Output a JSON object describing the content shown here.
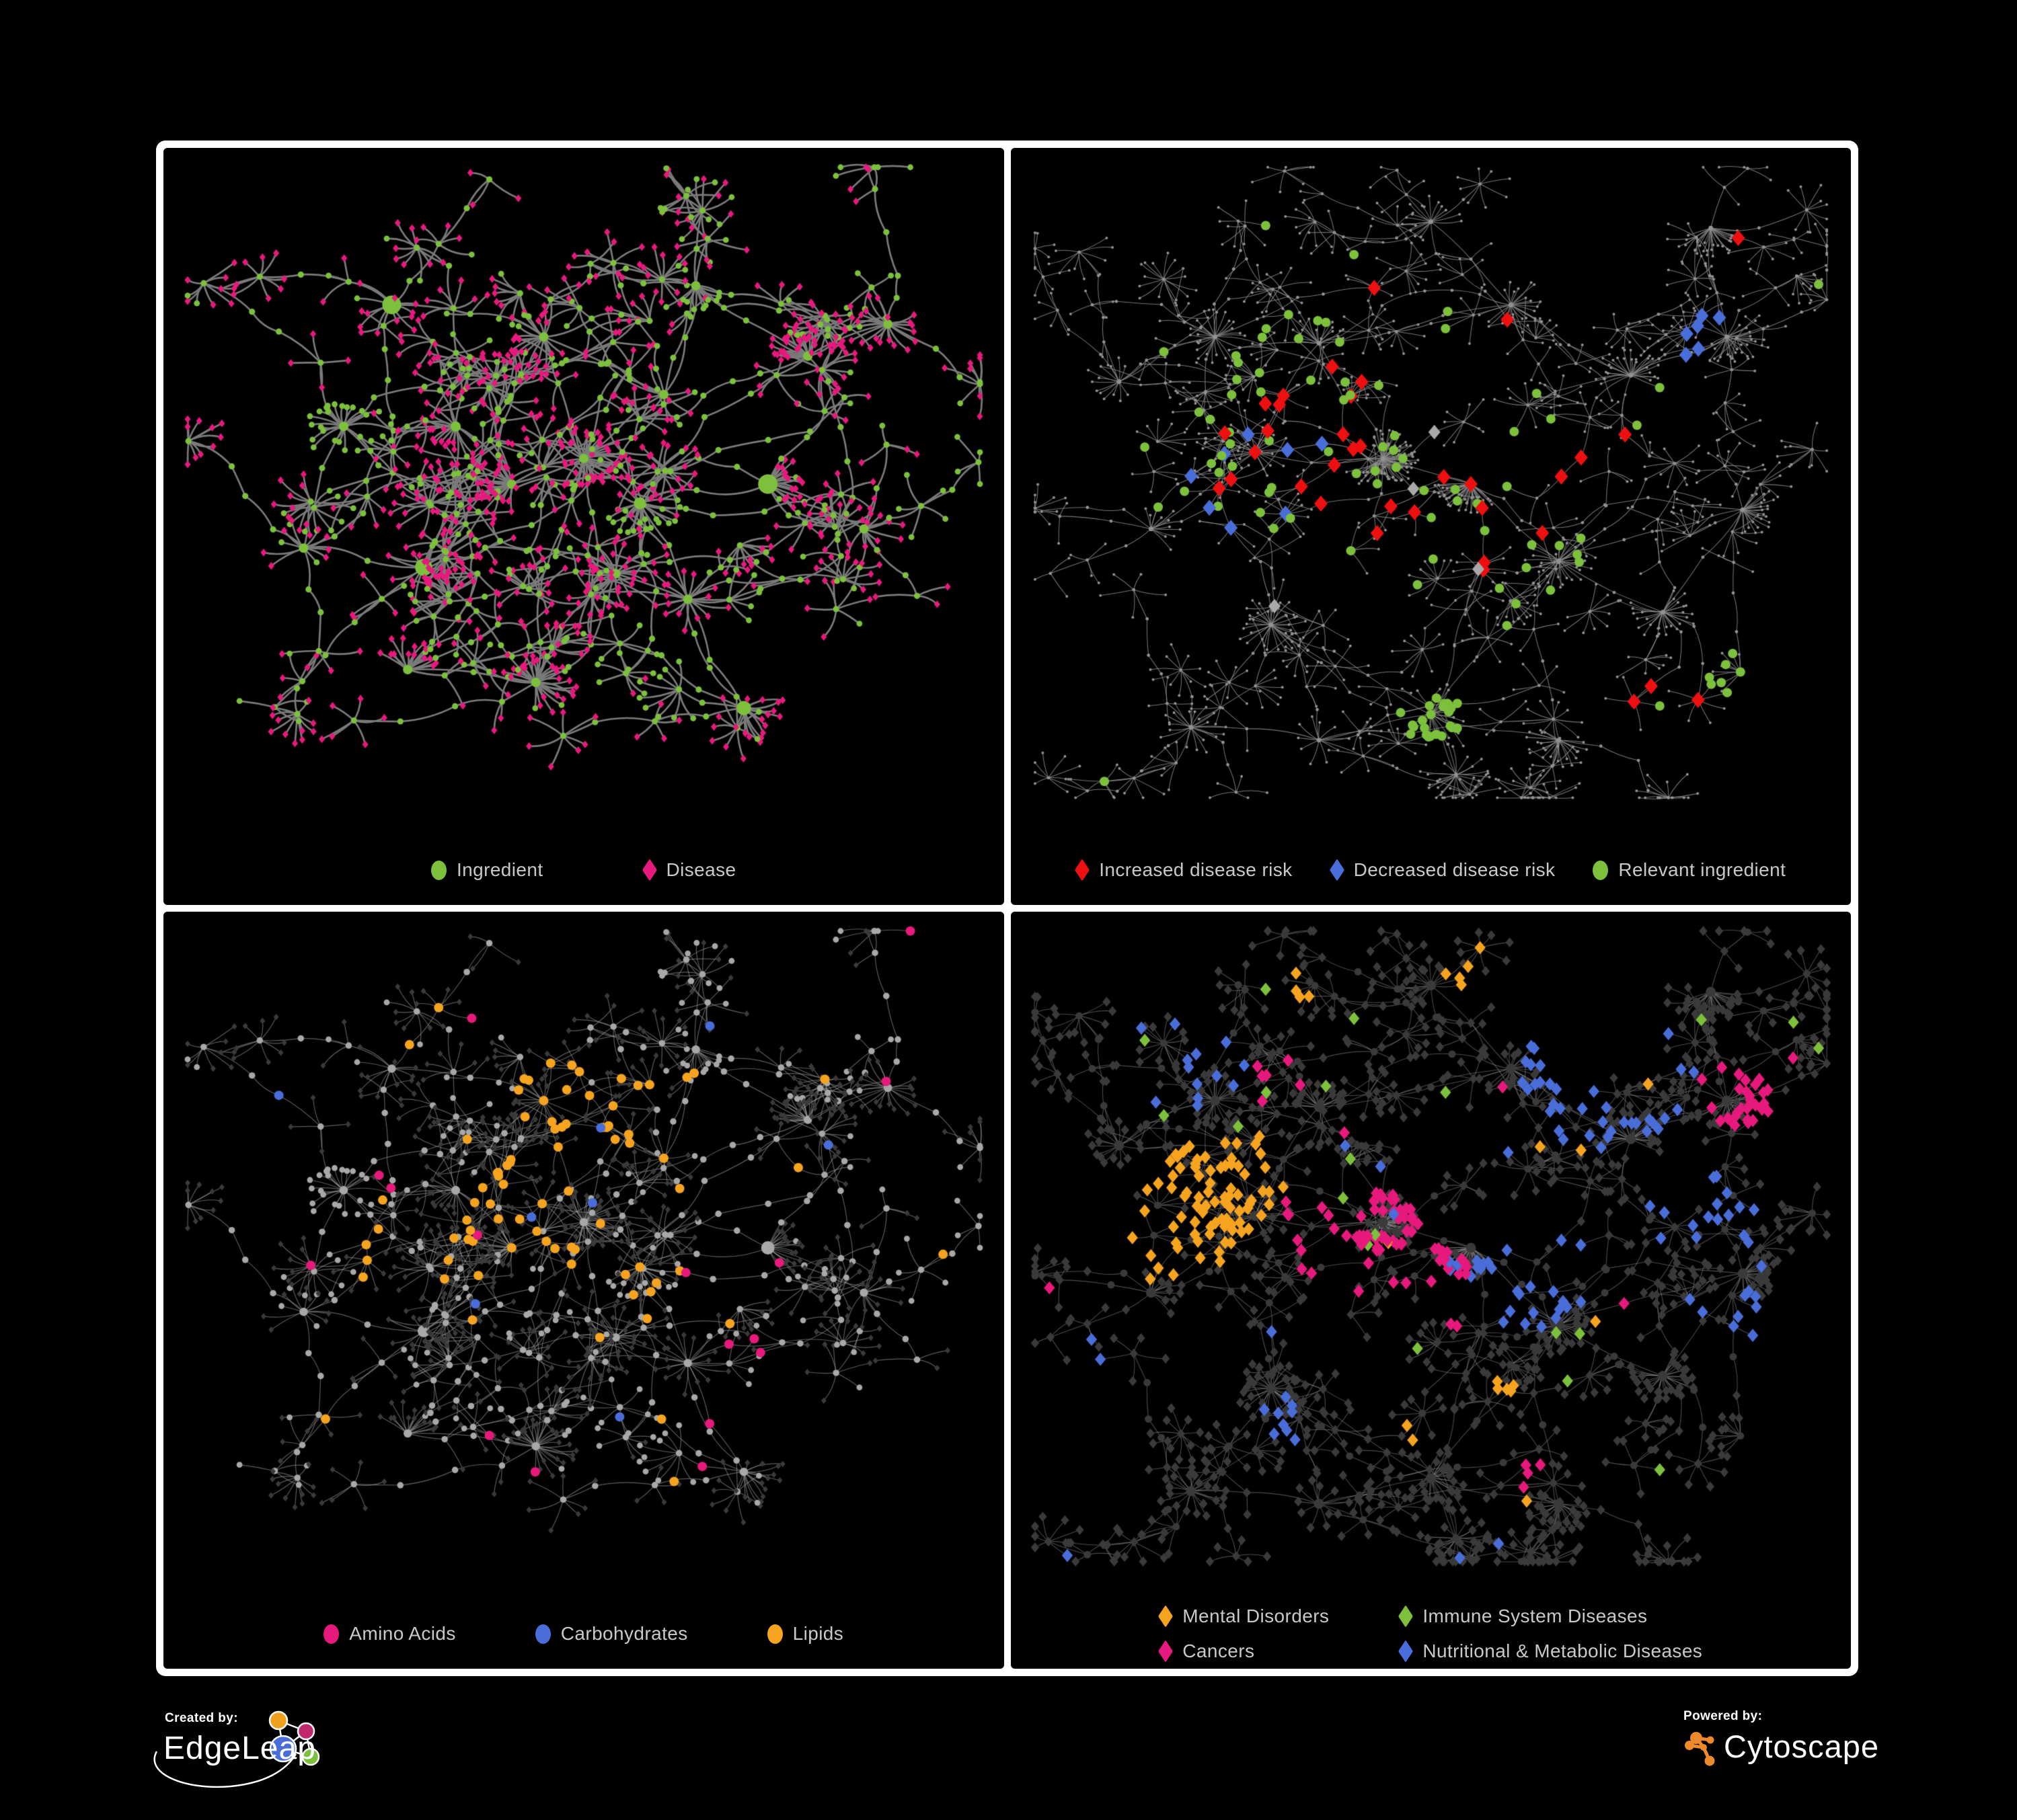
{
  "panels": [
    {
      "name": "ingredient-disease-network",
      "layout": "A",
      "legend": [
        {
          "shape": "circle",
          "color": "#7cc03c",
          "label": "Ingredient"
        },
        {
          "shape": "diamond",
          "color": "#e7197c",
          "label": "Disease"
        }
      ],
      "style": {
        "mode": "A",
        "seed": 11,
        "edge_color": "rgba(123,123,123,1)",
        "edge_width": 2.7,
        "curve": 0.2,
        "base": {
          "circle": "#7cc03c",
          "diamond": "#e7197c"
        },
        "sizes": {
          "hub": 7,
          "hub_big_p": 0.3,
          "hub_big_add": 8,
          "mid": 4.6,
          "leaf_c": 4.4,
          "leaf_dw": 4.6,
          "leaf_dh": 5.8
        },
        "highlights": []
      }
    },
    {
      "name": "disease-risk-network",
      "layout": "B",
      "legend": [
        {
          "shape": "diamond",
          "color": "#ee1010",
          "label": "Increased disease risk"
        },
        {
          "shape": "diamond",
          "color": "#4a6ed9",
          "label": "Decreased disease risk"
        },
        {
          "shape": "circle",
          "color": "#7cc03c",
          "label": "Relevant ingredient"
        }
      ],
      "style": {
        "mode": "dots",
        "seed": 22,
        "edge_color": "rgba(138,138,138,0.85)",
        "edge_width": 1.05,
        "curve": 0.12,
        "base": {
          "circle": "#929292",
          "diamond": "#929292"
        },
        "sizes": {
          "hub": 3.4,
          "mid": 2.4,
          "leaf": 2.0
        },
        "highlights": [
          {
            "shape": "diamond",
            "color": "#ee1010",
            "size": 10,
            "target": "any",
            "kinds": [
              "hub",
              "mid"
            ],
            "regions": [
              [
                0.46,
                0.44,
                0.17,
                0.42
              ],
              [
                0.28,
                0.44,
                0.13,
                0.28
              ],
              [
                0.63,
                0.58,
                0.1,
                0.35
              ],
              [
                0.55,
                0.3,
                0.08,
                0.2
              ],
              [
                0.93,
                0.42,
                0.04,
                0.8
              ],
              [
                0.79,
                0.82,
                0.06,
                0.5
              ],
              [
                0.7,
                0.4,
                0.06,
                0.3
              ]
            ],
            "global_p": 0.004
          },
          {
            "shape": "diamond",
            "color": "#4a6ed9",
            "size": 10,
            "target": "any",
            "kinds": [
              "hub",
              "mid"
            ],
            "regions": [
              [
                0.25,
                0.49,
                0.09,
                0.3
              ],
              [
                0.84,
                0.27,
                0.04,
                0.85
              ],
              [
                0.33,
                0.42,
                0.05,
                0.25
              ]
            ],
            "global_p": 0.002
          },
          {
            "shape": "diamond",
            "color": "#a9a9a9",
            "size": 9,
            "target": "any",
            "kinds": [
              "hub",
              "mid"
            ],
            "regions": [
              [
                0.38,
                0.52,
                0.22,
                0.07
              ],
              [
                0.6,
                0.47,
                0.15,
                0.06
              ]
            ],
            "global_p": 0.002
          },
          {
            "shape": "circle",
            "color": "#7cc03c",
            "size": 7,
            "target": "any",
            "kinds": [
              "hub",
              "mid",
              "leaf"
            ],
            "regions": [
              [
                0.44,
                0.42,
                0.22,
                0.1
              ],
              [
                0.16,
                0.47,
                0.1,
                0.2
              ],
              [
                0.5,
                0.86,
                0.04,
                0.9
              ],
              [
                0.79,
                0.38,
                0.05,
                0.45
              ],
              [
                0.6,
                0.63,
                0.1,
                0.12
              ],
              [
                0.88,
                0.78,
                0.05,
                0.3
              ]
            ],
            "global_p": 0.003
          }
        ]
      }
    },
    {
      "name": "nutrient-class-network",
      "layout": "A",
      "legend": [
        {
          "shape": "circle",
          "color": "#e7197c",
          "label": "Amino Acids"
        },
        {
          "shape": "circle",
          "color": "#4a6ed9",
          "label": "Carbohydrates"
        },
        {
          "shape": "circle",
          "color": "#f6a41f",
          "label": "Lipids"
        }
      ],
      "style": {
        "mode": "A",
        "seed": 33,
        "edge_color": "rgba(165,165,165,0.55)",
        "edge_width": 1.2,
        "curve": 0.16,
        "base": {
          "circle": "#a8a8a8",
          "diamond": "#3a3a3a"
        },
        "sizes": {
          "hub": 6.2,
          "hub_big_p": 0.25,
          "hub_big_add": 4,
          "mid": 4.8,
          "leaf_c": 4.4,
          "leaf_dw": 4.0,
          "leaf_dh": 4.8
        },
        "highlights": [
          {
            "shape": "circle",
            "color": "#f6a41f",
            "size": 7,
            "target": "circle",
            "regions": [
              [
                0.5,
                0.27,
                0.09,
                0.85
              ],
              [
                0.42,
                0.44,
                0.08,
                0.6
              ],
              [
                0.55,
                0.5,
                0.08,
                0.35
              ],
              [
                0.3,
                0.55,
                0.1,
                0.2
              ],
              [
                0.65,
                0.6,
                0.05,
                0.4
              ]
            ],
            "global_p": 0.025
          },
          {
            "shape": "circle",
            "color": "#e7197c",
            "size": 7,
            "target": "circle",
            "regions": [
              [
                0.7,
                0.72,
                0.08,
                0.3
              ],
              [
                0.15,
                0.5,
                0.06,
                0.3
              ],
              [
                0.45,
                0.85,
                0.05,
                0.3
              ],
              [
                0.85,
                0.35,
                0.05,
                0.3
              ]
            ],
            "global_p": 0.022
          },
          {
            "shape": "circle",
            "color": "#4a6ed9",
            "size": 7,
            "target": "circle",
            "regions": [
              [
                0.46,
                0.4,
                0.06,
                0.5
              ],
              [
                0.12,
                0.28,
                0.04,
                0.6
              ],
              [
                0.52,
                0.33,
                0.05,
                0.3
              ]
            ],
            "global_p": 0.008
          }
        ]
      }
    },
    {
      "name": "disease-category-network",
      "layout": "B",
      "legend": [
        {
          "shape": "diamond",
          "color": "#f6a41f",
          "label": "Mental Disorders"
        },
        {
          "shape": "diamond",
          "color": "#7cc03c",
          "label": "Immune System Diseases"
        },
        {
          "shape": "diamond",
          "color": "#e7197c",
          "label": "Cancers"
        },
        {
          "shape": "diamond",
          "color": "#4a6ed9",
          "label": "Nutritional & Metabolic Diseases"
        }
      ],
      "style": {
        "mode": "B4",
        "seed": 44,
        "edge_color": "rgba(150,150,150,0.5)",
        "edge_width": 1.1,
        "curve": 0.12,
        "base": {
          "circle": "#3a3a3a",
          "diamond": "#3a3a3a"
        },
        "sizes": {
          "hub": 7.5,
          "mid_c": 5.5,
          "dw": 6.2,
          "dh": 7.4
        },
        "highlights": [
          {
            "shape": "diamond",
            "color": "#f6a41f",
            "size": 8.2,
            "target": "diamond",
            "regions": [
              [
                0.19,
                0.44,
                0.1,
                0.9
              ],
              [
                0.13,
                0.5,
                0.07,
                0.7
              ],
              [
                0.27,
                0.38,
                0.06,
                0.35
              ],
              [
                0.55,
                0.06,
                0.04,
                0.6
              ],
              [
                0.33,
                0.09,
                0.04,
                0.45
              ],
              [
                0.47,
                0.78,
                0.03,
                0.5
              ],
              [
                0.6,
                0.72,
                0.03,
                0.4
              ]
            ],
            "global_p": 0.006
          },
          {
            "shape": "diamond",
            "color": "#e7197c",
            "size": 8.2,
            "target": "diamond",
            "regions": [
              [
                0.44,
                0.5,
                0.11,
                0.55
              ],
              [
                0.37,
                0.44,
                0.07,
                0.35
              ],
              [
                0.88,
                0.26,
                0.05,
                0.75
              ],
              [
                0.52,
                0.58,
                0.06,
                0.3
              ],
              [
                0.63,
                0.86,
                0.04,
                0.4
              ],
              [
                0.3,
                0.24,
                0.04,
                0.3
              ]
            ],
            "global_p": 0.006
          },
          {
            "shape": "diamond",
            "color": "#4a6ed9",
            "size": 8.2,
            "target": "diamond",
            "regions": [
              [
                0.61,
                0.54,
                0.09,
                0.65
              ],
              [
                0.72,
                0.24,
                0.11,
                0.4
              ],
              [
                0.85,
                0.44,
                0.08,
                0.4
              ],
              [
                0.18,
                0.2,
                0.09,
                0.3
              ],
              [
                0.88,
                0.62,
                0.07,
                0.45
              ],
              [
                0.1,
                0.68,
                0.05,
                0.45
              ],
              [
                0.3,
                0.76,
                0.05,
                0.3
              ],
              [
                0.55,
                0.36,
                0.05,
                0.25
              ]
            ],
            "global_p": 0.008
          },
          {
            "shape": "diamond",
            "color": "#7cc03c",
            "size": 8.2,
            "target": "diamond",
            "regions": [
              [
                0.33,
                0.3,
                0.2,
                0.03
              ],
              [
                0.55,
                0.6,
                0.2,
                0.02
              ]
            ],
            "global_p": 0.005
          }
        ]
      }
    }
  ],
  "networks": {
    "A": {
      "seed": 101,
      "step": 0.048,
      "fan_r": 0.035,
      "circle_fan_p": 0.16,
      "hub_fan_min": 6,
      "hub_fan_max": 20,
      "br_min": 3,
      "br_max": 5,
      "cross": 45,
      "cross_d": 0.09,
      "core": [
        0.45,
        0.45
      ],
      "core_r": 0.3,
      "hubs": [
        [
          0.5,
          0.46,
          2.2
        ],
        [
          0.41,
          0.5,
          1.8
        ],
        [
          0.34,
          0.41,
          1.4
        ],
        [
          0.57,
          0.53,
          1.5
        ],
        [
          0.6,
          0.36,
          1
        ],
        [
          0.45,
          0.27,
          1
        ],
        [
          0.3,
          0.63,
          1
        ],
        [
          0.2,
          0.41,
          1
        ],
        [
          0.26,
          0.22,
          1
        ],
        [
          0.64,
          0.19,
          1
        ],
        [
          0.78,
          0.3,
          1.3
        ],
        [
          0.88,
          0.25,
          1
        ],
        [
          0.73,
          0.5,
          1
        ],
        [
          0.85,
          0.57,
          1
        ],
        [
          0.63,
          0.68,
          1.2
        ],
        [
          0.44,
          0.81,
          1.6
        ],
        [
          0.28,
          0.79,
          1
        ],
        [
          0.15,
          0.6,
          1
        ],
        [
          0.7,
          0.85,
          1
        ],
        [
          0.54,
          0.64,
          1.2
        ]
      ]
    },
    "B": {
      "seed": 202,
      "step": 0.042,
      "fan_r": 0.03,
      "circle_fan_p": 0,
      "hub_fan_min": 8,
      "hub_fan_max": 24,
      "br_min": 4,
      "br_max": 6,
      "cross": 90,
      "cross_d": 0.08,
      "core": [
        0.42,
        0.45
      ],
      "core_r": 0.35,
      "hubs": [
        [
          0.44,
          0.46,
          2.4
        ],
        [
          0.28,
          0.45,
          2.0
        ],
        [
          0.55,
          0.5,
          1.6
        ],
        [
          0.36,
          0.28,
          1.2
        ],
        [
          0.23,
          0.27,
          1
        ],
        [
          0.6,
          0.22,
          1
        ],
        [
          0.5,
          0.09,
          1
        ],
        [
          0.75,
          0.33,
          1.2
        ],
        [
          0.87,
          0.27,
          1
        ],
        [
          0.66,
          0.62,
          1.4
        ],
        [
          0.79,
          0.7,
          1.2
        ],
        [
          0.5,
          0.86,
          1.3
        ],
        [
          0.3,
          0.72,
          1.2
        ],
        [
          0.15,
          0.57,
          1
        ],
        [
          0.89,
          0.54,
          1
        ],
        [
          0.36,
          0.9,
          1
        ],
        [
          0.11,
          0.34,
          1
        ],
        [
          0.66,
          0.9,
          1
        ],
        [
          0.85,
          0.1,
          1
        ],
        [
          0.2,
          0.88,
          1
        ]
      ]
    }
  },
  "footer": {
    "created_by": "Created by:",
    "brand": "EdgeLeap",
    "powered_by": "Powered by:",
    "engine": "Cytoscape"
  },
  "logo_colors": {
    "edgeleap_orange": "#efa11e",
    "edgeleap_magenta": "#c2266e",
    "edgeleap_blue": "#4a6ed9",
    "edgeleap_green": "#7cc03c",
    "cytoscape_orange": "#ee8a2b"
  }
}
